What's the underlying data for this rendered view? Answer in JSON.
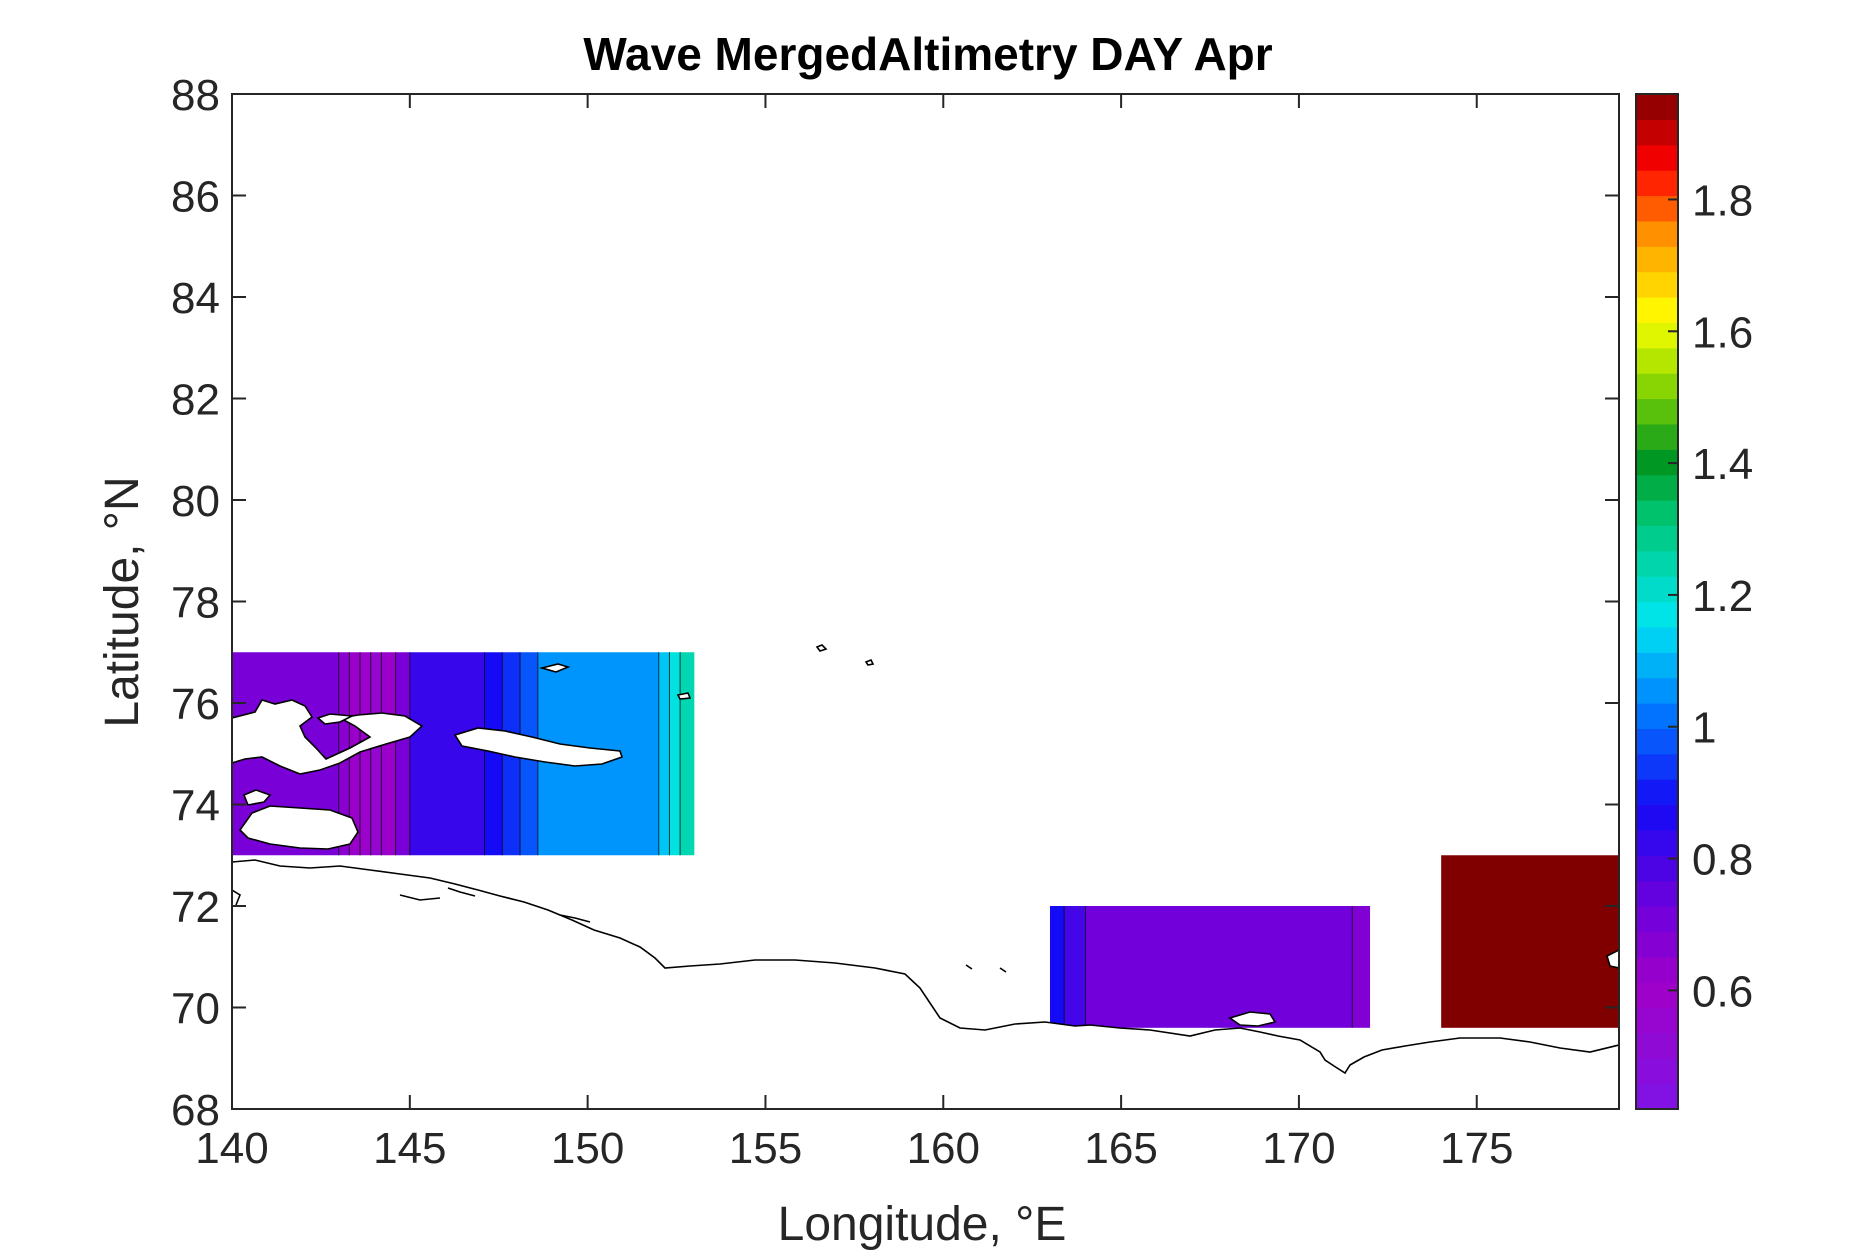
{
  "chart_data": {
    "type": "heatmap",
    "title": "Wave MergedAltimetry DAY Apr",
    "xlabel": "Longitude, °E",
    "ylabel": "Latitude, °N",
    "xlim": [
      140,
      179
    ],
    "ylim": [
      68,
      88
    ],
    "x_ticks": [
      "140",
      "145",
      "150",
      "155",
      "160",
      "165",
      "170",
      "175"
    ],
    "y_ticks": [
      "68",
      "70",
      "72",
      "74",
      "76",
      "78",
      "80",
      "82",
      "84",
      "86",
      "88"
    ],
    "colorbar": {
      "range": [
        0.42,
        1.96
      ],
      "ticks": [
        "0.6",
        "0.8",
        "1",
        "1.2",
        "1.4",
        "1.6",
        "1.8"
      ],
      "colormap": "jet-like (purple-blue-cyan-green-yellow-red-darkred)"
    },
    "fields": [
      {
        "region": "west",
        "lon_range": [
          140,
          153
        ],
        "lat_range": [
          73,
          77
        ],
        "bands": [
          {
            "lon_start": 140.0,
            "lon_end": 143.0,
            "value": 0.7
          },
          {
            "lon_start": 143.0,
            "lon_end": 143.3,
            "value": 0.66
          },
          {
            "lon_start": 143.3,
            "lon_end": 143.6,
            "value": 0.62
          },
          {
            "lon_start": 143.6,
            "lon_end": 143.9,
            "value": 0.58
          },
          {
            "lon_start": 143.9,
            "lon_end": 144.2,
            "value": 0.55
          },
          {
            "lon_start": 144.2,
            "lon_end": 144.6,
            "value": 0.62
          },
          {
            "lon_start": 144.6,
            "lon_end": 145.0,
            "value": 0.7
          },
          {
            "lon_start": 145.0,
            "lon_end": 147.1,
            "value": 0.82
          },
          {
            "lon_start": 147.1,
            "lon_end": 147.6,
            "value": 0.88
          },
          {
            "lon_start": 147.6,
            "lon_end": 148.1,
            "value": 0.93
          },
          {
            "lon_start": 148.1,
            "lon_end": 148.6,
            "value": 0.98
          },
          {
            "lon_start": 148.6,
            "lon_end": 152.0,
            "value": 1.06
          },
          {
            "lon_start": 152.0,
            "lon_end": 152.3,
            "value": 1.12
          },
          {
            "lon_start": 152.3,
            "lon_end": 152.6,
            "value": 1.18
          },
          {
            "lon_start": 152.6,
            "lon_end": 153.0,
            "value": 1.24
          }
        ]
      },
      {
        "region": "central",
        "lon_range": [
          163,
          172
        ],
        "lat_range": [
          69.6,
          72
        ],
        "bands": [
          {
            "lon_start": 163.0,
            "lon_end": 163.4,
            "value": 0.88
          },
          {
            "lon_start": 163.4,
            "lon_end": 164.0,
            "value": 0.8
          },
          {
            "lon_start": 164.0,
            "lon_end": 171.5,
            "value": 0.72
          },
          {
            "lon_start": 171.5,
            "lon_end": 172.0,
            "value": 0.68
          }
        ]
      },
      {
        "region": "east",
        "lon_range": [
          174,
          179
        ],
        "lat_range": [
          69.6,
          73
        ],
        "bands": [
          {
            "lon_start": 174.0,
            "lon_end": 179.0,
            "value": 1.96
          }
        ]
      }
    ]
  }
}
